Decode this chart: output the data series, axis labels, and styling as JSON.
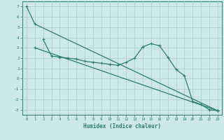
{
  "xlabel": "Humidex (Indice chaleur)",
  "bg_color": "#cce8e8",
  "line_color": "#2e7d6e",
  "grid_color": "#aacece",
  "xlim": [
    -0.5,
    23.5
  ],
  "ylim": [
    -3.5,
    7.5
  ],
  "xticks": [
    0,
    1,
    2,
    3,
    4,
    5,
    6,
    7,
    8,
    9,
    10,
    11,
    12,
    13,
    14,
    15,
    16,
    17,
    18,
    19,
    20,
    21,
    22,
    23
  ],
  "yticks": [
    -3,
    -2,
    -1,
    0,
    1,
    2,
    3,
    4,
    5,
    6,
    7
  ],
  "line1_x": [
    0,
    1,
    23
  ],
  "line1_y": [
    7.0,
    5.3,
    -3.1
  ],
  "line2_x": [
    2,
    3,
    4,
    5,
    6,
    7,
    8,
    9,
    10,
    11,
    12,
    13,
    14,
    15,
    16,
    17,
    18,
    19,
    20,
    21,
    22,
    23
  ],
  "line2_y": [
    3.8,
    2.2,
    2.1,
    2.0,
    1.9,
    1.7,
    1.6,
    1.5,
    1.4,
    1.3,
    1.6,
    2.0,
    3.1,
    3.4,
    3.2,
    2.1,
    0.9,
    0.3,
    -2.2,
    -2.5,
    -3.0,
    -3.1
  ],
  "line3_x": [
    1,
    23
  ],
  "line3_y": [
    3.0,
    -3.1
  ],
  "markersize": 2.5,
  "linewidth": 0.9
}
